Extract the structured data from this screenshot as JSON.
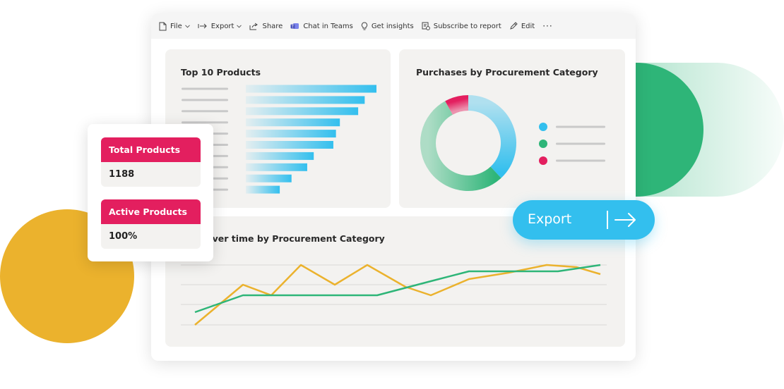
{
  "toolbar": {
    "items": [
      {
        "label": "File",
        "icon": "file-icon",
        "has_dropdown": true
      },
      {
        "label": "Export",
        "icon": "export-arrow-icon",
        "has_dropdown": true
      },
      {
        "label": "Share",
        "icon": "share-icon"
      },
      {
        "label": "Chat in Teams",
        "icon": "teams-icon"
      },
      {
        "label": "Get insights",
        "icon": "lightbulb-icon"
      },
      {
        "label": "Subscribe to report",
        "icon": "subscribe-icon"
      },
      {
        "label": "Edit",
        "icon": "pencil-icon"
      },
      {
        "label": "···",
        "icon": "more-icon"
      }
    ]
  },
  "top_products": {
    "title": "Top 10 Products",
    "bar_levels": [
      1.0,
      0.91,
      0.86,
      0.72,
      0.69,
      0.67,
      0.52,
      0.47,
      0.35,
      0.26
    ]
  },
  "procurement": {
    "title": "Purchases by Procurement Category",
    "donut_shares": [
      0.38,
      0.08,
      0.54
    ],
    "legend_colors": [
      "#33bfee",
      "#2eb578",
      "#e31f5f"
    ]
  },
  "over_time": {
    "title": "over time by Procurement Category",
    "series_colors": {
      "yellow": "#ebb22d",
      "green": "#2eb578"
    }
  },
  "kpis": [
    {
      "label": "Total Products",
      "value": "1188"
    },
    {
      "label": "Active Products",
      "value": "100%"
    }
  ],
  "export_button": {
    "label": "Export",
    "icon": "arrow-right-icon"
  },
  "colors": {
    "accent_blue": "#33bfee",
    "accent_green": "#2eb578",
    "accent_pink": "#e31f5f",
    "accent_yellow": "#ebb22d"
  }
}
